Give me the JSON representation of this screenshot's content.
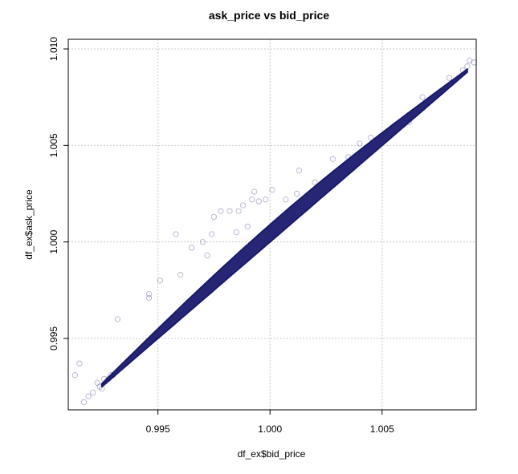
{
  "chart_data": {
    "type": "scatter",
    "title": "ask_price vs bid_price",
    "xlabel": "df_ex$bid_price",
    "ylabel": "df_ex$ask_price",
    "xlim": [
      0.991,
      1.0092
    ],
    "ylim": [
      0.9913,
      1.0105
    ],
    "xticks": [
      0.995,
      1.0,
      1.005
    ],
    "xtick_labels": [
      "0.995",
      "1.000",
      "1.005"
    ],
    "yticks": [
      0.995,
      1.0,
      1.005,
      1.01
    ],
    "ytick_labels": [
      "0.995",
      "1.000",
      "1.005",
      "1.010"
    ],
    "grid": true,
    "marker": "open-circle",
    "point_color": "#1a1a6e",
    "point_alpha": 0.2,
    "main_band": {
      "x_range": [
        0.9925,
        1.0088
      ],
      "lower_line": {
        "slope": 1.0,
        "intercept": 0.0
      },
      "upper_offset_at_center": 0.0009,
      "upper_offset_at_ends": 0.00015
    },
    "series": [
      {
        "points": [
          [
            0.9913,
            0.9931
          ],
          [
            0.9915,
            0.9937
          ],
          [
            0.9917,
            0.9917
          ],
          [
            0.9919,
            0.992
          ],
          [
            0.9921,
            0.9922
          ],
          [
            0.9923,
            0.9927
          ],
          [
            0.9924,
            0.9925
          ],
          [
            0.9925,
            0.9924
          ],
          [
            0.9926,
            0.9929
          ],
          [
            0.9928,
            0.9929
          ],
          [
            0.9929,
            0.9931
          ],
          [
            0.993,
            0.9931
          ],
          [
            0.9932,
            0.996
          ],
          [
            0.9946,
            0.9973
          ],
          [
            0.9946,
            0.9971
          ],
          [
            0.9958,
            1.0004
          ],
          [
            0.9951,
            0.998
          ],
          [
            0.9965,
            0.9997
          ],
          [
            0.997,
            1.0
          ],
          [
            0.9974,
            1.0004
          ],
          [
            0.9975,
            1.0013
          ],
          [
            0.9978,
            1.0016
          ],
          [
            0.9982,
            1.0016
          ],
          [
            0.9986,
            1.0016
          ],
          [
            0.9988,
            1.0019
          ],
          [
            0.9992,
            1.0022
          ],
          [
            0.9993,
            1.0026
          ],
          [
            0.9995,
            1.0021
          ],
          [
            0.9998,
            1.0022
          ],
          [
            1.0001,
            1.0027
          ],
          [
            1.0007,
            1.0022
          ],
          [
            1.0013,
            1.0037
          ],
          [
            1.0028,
            1.0043
          ],
          [
            1.004,
            1.0051
          ],
          [
            1.005,
            1.0055
          ],
          [
            1.0062,
            1.0062
          ],
          [
            1.0068,
            1.0075
          ],
          [
            1.008,
            1.0085
          ],
          [
            1.0086,
            1.0089
          ],
          [
            1.0088,
            1.0091
          ],
          [
            1.0089,
            1.0094
          ],
          [
            1.0091,
            1.0093
          ],
          [
            0.999,
            1.0008
          ],
          [
            0.9985,
            1.0005
          ],
          [
            0.9972,
            0.9993
          ],
          [
            0.996,
            0.9983
          ],
          [
            1.0012,
            1.0025
          ],
          [
            1.002,
            1.0031
          ],
          [
            1.0035,
            1.0044
          ],
          [
            1.0045,
            1.0054
          ]
        ]
      }
    ]
  }
}
